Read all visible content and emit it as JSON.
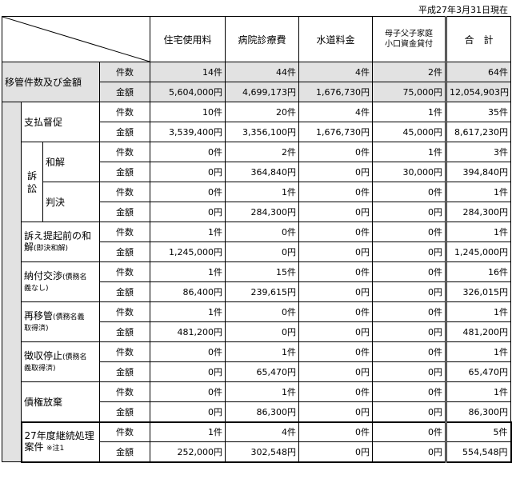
{
  "date_label": "平成27年3月31日現在",
  "headers": {
    "col1": "住宅使用料",
    "col2": "病院診療費",
    "col3": "水道料金",
    "col4_line1": "母子父子家庭",
    "col4_line2": "小口資金貸付",
    "total": "合　計"
  },
  "labels": {
    "count": "件数",
    "amount": "金額",
    "sosho_line1": "訴",
    "sosho_line2": "訟"
  },
  "groups": {
    "ikan": {
      "label": "移管件数及び金額",
      "count": [
        "14件",
        "44件",
        "4件",
        "2件",
        "64件"
      ],
      "amount": [
        "5,604,000円",
        "4,699,173円",
        "1,676,730円",
        "75,000円",
        "12,054,903円"
      ]
    },
    "shiharai": {
      "label": "支払督促",
      "count": [
        "10件",
        "20件",
        "4件",
        "1件",
        "35件"
      ],
      "amount": [
        "3,539,400円",
        "3,356,100円",
        "1,676,730円",
        "45,000円",
        "8,617,230円"
      ]
    },
    "wakai": {
      "label": "和解",
      "count": [
        "0件",
        "2件",
        "0件",
        "1件",
        "3件"
      ],
      "amount": [
        "0円",
        "364,840円",
        "0円",
        "30,000円",
        "394,840円"
      ]
    },
    "hanketsu": {
      "label": "判決",
      "count": [
        "0件",
        "1件",
        "0件",
        "0件",
        "1件"
      ],
      "amount": [
        "0円",
        "284,300円",
        "0円",
        "0円",
        "284,300円"
      ]
    },
    "teiki": {
      "label_main": "訴え提起前の和",
      "label_sub1": "解",
      "label_sub2": "(即決和解)",
      "count": [
        "1件",
        "0件",
        "0件",
        "0件",
        "1件"
      ],
      "amount": [
        "1,245,000円",
        "0円",
        "0円",
        "0円",
        "1,245,000円"
      ]
    },
    "noufu": {
      "label_main": "納付交渉",
      "label_sub1": "(債務名",
      "label_sub2": "義なし)",
      "count": [
        "1件",
        "15件",
        "0件",
        "0件",
        "16件"
      ],
      "amount": [
        "86,400円",
        "239,615円",
        "0円",
        "0円",
        "326,015円"
      ]
    },
    "saiikan": {
      "label_main": "再移管",
      "label_sub1": "(債務名義",
      "label_sub2": "取得済)",
      "count": [
        "1件",
        "0件",
        "0件",
        "0件",
        "1件"
      ],
      "amount": [
        "481,200円",
        "0円",
        "0円",
        "0円",
        "481,200円"
      ]
    },
    "choshu": {
      "label_main": "徴収停止",
      "label_sub1": "(債務名",
      "label_sub2": "義取得済)",
      "count": [
        "0件",
        "1件",
        "0件",
        "0件",
        "1件"
      ],
      "amount": [
        "0円",
        "65,470円",
        "0円",
        "0円",
        "65,470円"
      ]
    },
    "saiken": {
      "label": "債権放棄",
      "count": [
        "0件",
        "1件",
        "0件",
        "0件",
        "1件"
      ],
      "amount": [
        "0円",
        "86,300円",
        "0円",
        "0円",
        "86,300円"
      ]
    },
    "keizoku": {
      "label_line1": "27年度継続処理",
      "label_line2": "案件",
      "note": "※注1",
      "count": [
        "1件",
        "4件",
        "0件",
        "0件",
        "5件"
      ],
      "amount": [
        "252,000円",
        "302,548円",
        "0円",
        "0円",
        "554,548円"
      ]
    }
  }
}
